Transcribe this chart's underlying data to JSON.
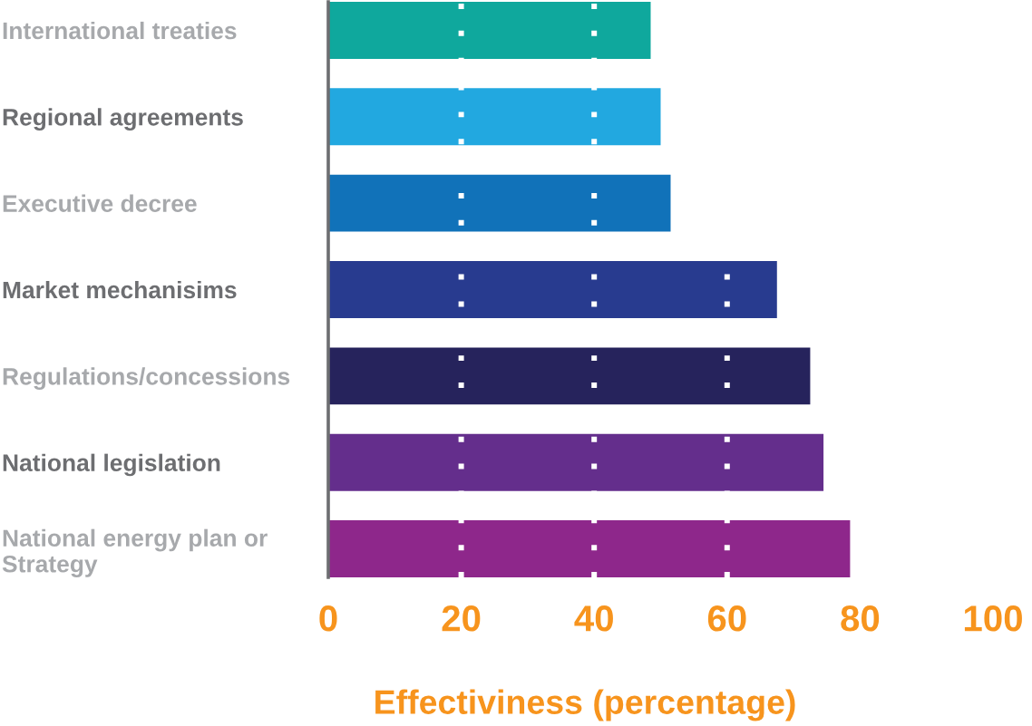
{
  "chart_data": {
    "type": "bar",
    "orientation": "horizontal",
    "categories": [
      "International treaties",
      "Regional agreements",
      "Executive decree",
      "Market mechanisims",
      "Regulations/concessions",
      "National legislation",
      "National energy plan or\nStrategy"
    ],
    "values": [
      48.5,
      50,
      51.5,
      67.5,
      72.5,
      74.5,
      78.5
    ],
    "colors": [
      "#0fa89d",
      "#22a8e0",
      "#1172b9",
      "#283b8f",
      "#26235c",
      "#642e8c",
      "#8e278b"
    ],
    "xlabel": "Effectiviness (percentage)",
    "xlim": [
      0,
      100
    ],
    "xticks": [
      0,
      20,
      40,
      60,
      80,
      100
    ],
    "grid": "x"
  }
}
